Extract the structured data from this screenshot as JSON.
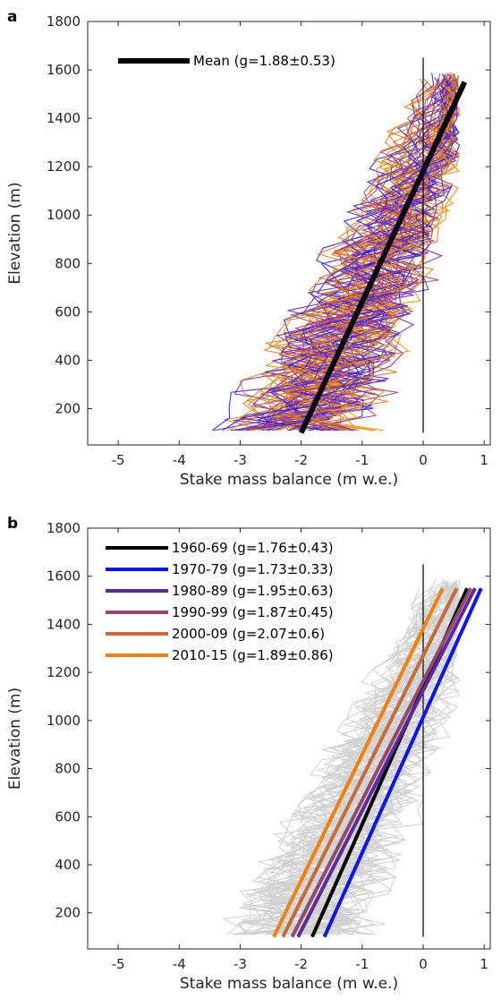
{
  "chart_data": [
    {
      "type": "line",
      "panel": "a",
      "xlabel": "Stake mass balance (m w.e.)",
      "ylabel": "Elevation (m)",
      "xlim": [
        -5.5,
        1.1
      ],
      "ylim": [
        50,
        1800
      ],
      "xticks": [
        -5,
        -4,
        -3,
        -2,
        -1,
        0,
        1
      ],
      "xtick_labels": [
        "-5",
        "-4",
        "-3",
        "-2",
        "-1",
        "0",
        "1"
      ],
      "yticks": [
        200,
        400,
        600,
        800,
        1000,
        1200,
        1400,
        1600,
        1800
      ],
      "ytick_labels": [
        "200",
        "400",
        "600",
        "800",
        "1000",
        "1200",
        "1400",
        "1600",
        "1800"
      ],
      "grid": false,
      "legend_position": "top-left",
      "reference_line": {
        "x": 0,
        "y": [
          100,
          1650
        ],
        "color": "#000000"
      },
      "profile_colors": [
        "#2a1ee8",
        "#6a2aa8",
        "#a04590",
        "#e07a20",
        "#f08a10"
      ],
      "series": [
        {
          "name": "Mean (g=1.88±0.53)",
          "color": "#000000",
          "x": [
            -2.0,
            0.68
          ],
          "y": [
            100,
            1550
          ]
        }
      ]
    },
    {
      "type": "line",
      "panel": "b",
      "xlabel": "Stake mass balance (m w.e.)",
      "ylabel": "Elevation (m)",
      "xlim": [
        -5.5,
        1.1
      ],
      "ylim": [
        50,
        1800
      ],
      "xticks": [
        -5,
        -4,
        -3,
        -2,
        -1,
        0,
        1
      ],
      "xtick_labels": [
        "-5",
        "-4",
        "-3",
        "-2",
        "-1",
        "0",
        "1"
      ],
      "yticks": [
        200,
        400,
        600,
        800,
        1000,
        1200,
        1400,
        1600,
        1800
      ],
      "ytick_labels": [
        "200",
        "400",
        "600",
        "800",
        "1000",
        "1200",
        "1400",
        "1600",
        "1800"
      ],
      "grid": false,
      "legend_position": "top-left",
      "reference_line": {
        "x": 0,
        "y": [
          100,
          1650
        ],
        "color": "#000000"
      },
      "profile_colors": [
        "#cfcfcf"
      ],
      "series": [
        {
          "name": "1960-69 (g=1.76±0.43)",
          "color": "#000000",
          "x": [
            -1.82,
            0.72
          ],
          "y": [
            100,
            1550
          ]
        },
        {
          "name": "1970-79 (g=1.73±0.33)",
          "color": "#0a14f5",
          "x": [
            -1.62,
            0.95
          ],
          "y": [
            100,
            1550
          ]
        },
        {
          "name": "1980-89 (g=1.95±0.63)",
          "color": "#5b2a9e",
          "x": [
            -2.05,
            0.85
          ],
          "y": [
            100,
            1550
          ]
        },
        {
          "name": "1990-99 (g=1.87±0.45)",
          "color": "#94486e",
          "x": [
            -2.15,
            0.78
          ],
          "y": [
            100,
            1550
          ]
        },
        {
          "name": "2000-09 (g=2.07±0.6)",
          "color": "#c8693a",
          "x": [
            -2.3,
            0.55
          ],
          "y": [
            100,
            1550
          ]
        },
        {
          "name": "2010-15 (g=1.89±0.86)",
          "color": "#f08010",
          "x": [
            -2.45,
            0.32
          ],
          "y": [
            100,
            1550
          ]
        }
      ]
    }
  ]
}
